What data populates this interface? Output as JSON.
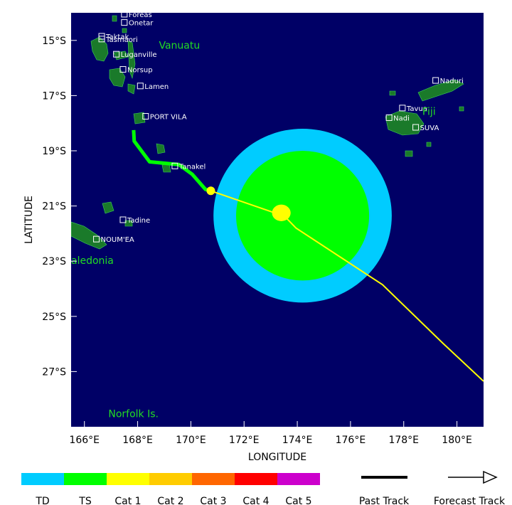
{
  "map": {
    "lon_range": [
      165.5,
      181
    ],
    "lat_range": [
      -29.0,
      -14.0
    ],
    "ocean_color": "#000066",
    "land_color": "#1a7a2a",
    "x_label": "LONGITUDE",
    "y_label": "LATITUDE",
    "x_ticks": [
      {
        "value": 166,
        "label": "166°E"
      },
      {
        "value": 168,
        "label": "168°E"
      },
      {
        "value": 170,
        "label": "170°E"
      },
      {
        "value": 172,
        "label": "172°E"
      },
      {
        "value": 174,
        "label": "174°E"
      },
      {
        "value": 176,
        "label": "176°E"
      },
      {
        "value": 178,
        "label": "178°E"
      },
      {
        "value": 180,
        "label": "180°E"
      }
    ],
    "y_ticks": [
      {
        "value": -15,
        "label": "15°S"
      },
      {
        "value": -17,
        "label": "17°S"
      },
      {
        "value": -19,
        "label": "19°S"
      },
      {
        "value": -21,
        "label": "21°S"
      },
      {
        "value": -23,
        "label": "23°S"
      },
      {
        "value": -25,
        "label": "25°S"
      },
      {
        "value": -27,
        "label": "27°S"
      }
    ],
    "places": [
      {
        "name": "Foreas",
        "lon": 167.5,
        "lat": -14.05
      },
      {
        "name": "Onetar",
        "lon": 167.5,
        "lat": -14.35
      },
      {
        "name": "Taktak",
        "lon": 166.65,
        "lat": -14.85
      },
      {
        "name": "Tasmaori",
        "lon": 166.65,
        "lat": -14.95
      },
      {
        "name": "Luganville",
        "lon": 167.2,
        "lat": -15.5
      },
      {
        "name": "Norsup",
        "lon": 167.45,
        "lat": -16.05
      },
      {
        "name": "Lamen",
        "lon": 168.1,
        "lat": -16.65
      },
      {
        "name": "PORT VILA",
        "lon": 168.3,
        "lat": -17.75
      },
      {
        "name": "Tanakel",
        "lon": 169.4,
        "lat": -19.55
      },
      {
        "name": "Tadine",
        "lon": 167.45,
        "lat": -21.5
      },
      {
        "name": "NOUM'EA",
        "lon": 166.45,
        "lat": -22.2
      },
      {
        "name": "Naduri",
        "lon": 179.2,
        "lat": -16.45
      },
      {
        "name": "Tavua",
        "lon": 177.95,
        "lat": -17.45
      },
      {
        "name": "Nadi",
        "lon": 177.45,
        "lat": -17.8
      },
      {
        "name": "SUVA",
        "lon": 178.45,
        "lat": -18.15
      }
    ],
    "regions": [
      {
        "name": "Vanuatu",
        "lon": 168.8,
        "lat": -15.3
      },
      {
        "name": "Fiji",
        "lon": 178.7,
        "lat": -17.7
      },
      {
        "name": "aledonia",
        "lon": 165.5,
        "lat": -23.1
      },
      {
        "name": "Norfolk Is.",
        "lon": 166.9,
        "lat": -28.65
      }
    ]
  },
  "storm": {
    "past_track": [
      [
        167.85,
        -18.25
      ],
      [
        167.87,
        -18.65
      ],
      [
        168.45,
        -19.4
      ],
      [
        169.55,
        -19.5
      ],
      [
        170.05,
        -19.85
      ],
      [
        170.55,
        -20.4
      ],
      [
        170.75,
        -20.45
      ]
    ],
    "forecast_track": [
      [
        170.75,
        -20.45
      ],
      [
        173.3,
        -21.3
      ],
      [
        173.55,
        -21.4
      ],
      [
        173.95,
        -21.8
      ],
      [
        177.2,
        -23.85
      ],
      [
        179.5,
        -26.0
      ],
      [
        181.0,
        -27.35
      ]
    ],
    "current_position": [
      170.75,
      -20.45
    ],
    "td_wind_radius": {
      "center": [
        174.2,
        -21.35
      ],
      "rx_deg": 3.35,
      "ry_deg": 3.15,
      "color": "#00ccff"
    },
    "ts_wind_radius": {
      "center": [
        174.2,
        -21.35
      ],
      "rx_deg": 2.5,
      "ry_deg": 2.35,
      "color": "#00ff00"
    },
    "cat1_wind_radius": {
      "center": [
        173.4,
        -21.25
      ],
      "rx_deg": 0.35,
      "ry_deg": 0.3,
      "color": "#ffff00"
    }
  },
  "legend": {
    "categories": [
      {
        "label": "TD",
        "color": "#00ccff"
      },
      {
        "label": "TS",
        "color": "#00ff00"
      },
      {
        "label": "Cat 1",
        "color": "#ffff00"
      },
      {
        "label": "Cat 2",
        "color": "#ffcc00"
      },
      {
        "label": "Cat 3",
        "color": "#ff6600"
      },
      {
        "label": "Cat 4",
        "color": "#ff0000"
      },
      {
        "label": "Cat 5",
        "color": "#cc00cc"
      }
    ],
    "past_track_label": "Past Track",
    "forecast_track_label": "Forecast Track"
  }
}
